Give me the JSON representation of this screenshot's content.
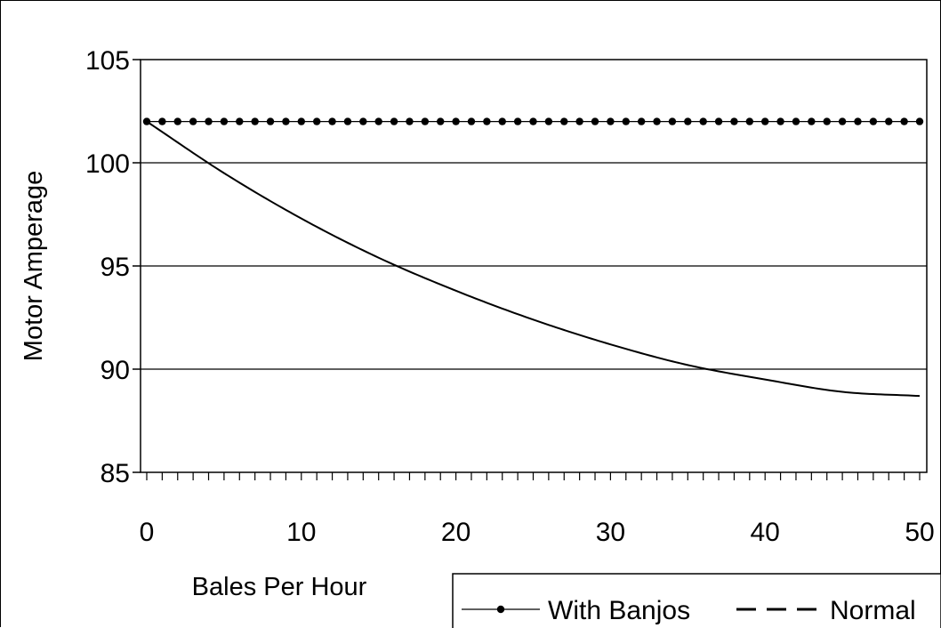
{
  "chart_data": {
    "type": "line",
    "title": "",
    "xlabel": "Bales Per Hour",
    "ylabel": "Motor Amperage",
    "xlim": [
      0,
      50
    ],
    "ylim": [
      85,
      105
    ],
    "x_ticks": [
      0,
      10,
      20,
      30,
      40,
      50
    ],
    "y_ticks": [
      85,
      90,
      95,
      100,
      105
    ],
    "x_tick_labels": [
      "0",
      "10",
      "20",
      "30",
      "40",
      "50"
    ],
    "y_tick_labels": [
      "85",
      "90",
      "95",
      "100",
      "105"
    ],
    "grid": "horizontal",
    "legend": "bottom-right",
    "series": [
      {
        "name": "With Banjos",
        "style": "dotted-markers",
        "color": "#000000",
        "x": [
          0,
          5,
          10,
          15,
          20,
          25,
          30,
          35,
          40,
          45,
          50
        ],
        "y": [
          102,
          102,
          102,
          102,
          102,
          102,
          102,
          102,
          102,
          102,
          102
        ]
      },
      {
        "name": "Normal",
        "style": "solid",
        "color": "#000000",
        "x": [
          0,
          5,
          10,
          15,
          20,
          25,
          30,
          35,
          40,
          45,
          50
        ],
        "y": [
          102,
          99.5,
          97.3,
          95.4,
          93.8,
          92.4,
          91.2,
          90.2,
          89.5,
          88.9,
          88.7
        ]
      }
    ]
  }
}
